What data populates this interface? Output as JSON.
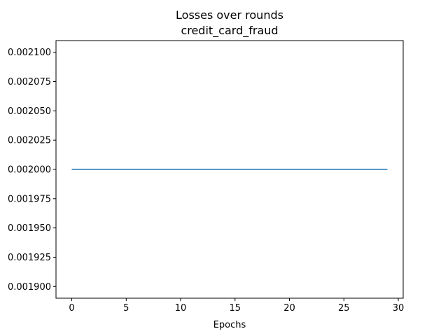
{
  "chart_data": {
    "type": "line",
    "title": "Losses over rounds",
    "subtitle": "credit_card_fraud",
    "xlabel": "Epochs",
    "ylabel": "",
    "xlim": [
      -1.45,
      30.45
    ],
    "ylim": [
      0.00189,
      0.00211
    ],
    "xticks": [
      0,
      5,
      10,
      15,
      20,
      25,
      30
    ],
    "yticks": [
      0.0019,
      0.001925,
      0.00195,
      0.001975,
      0.002,
      0.002025,
      0.00205,
      0.002075,
      0.0021
    ],
    "ytick_labels": [
      "0.001900",
      "0.001925",
      "0.001950",
      "0.001975",
      "0.002000",
      "0.002025",
      "0.002050",
      "0.002075",
      "0.002100"
    ],
    "grid": false,
    "series": [
      {
        "color": "#1f77b4",
        "x": [
          0,
          1,
          2,
          3,
          4,
          5,
          6,
          7,
          8,
          9,
          10,
          11,
          12,
          13,
          14,
          15,
          16,
          17,
          18,
          19,
          20,
          21,
          22,
          23,
          24,
          25,
          26,
          27,
          28,
          29
        ],
        "values": [
          0.002,
          0.002,
          0.002,
          0.002,
          0.002,
          0.002,
          0.002,
          0.002,
          0.002,
          0.002,
          0.002,
          0.002,
          0.002,
          0.002,
          0.002,
          0.002,
          0.002,
          0.002,
          0.002,
          0.002,
          0.002,
          0.002,
          0.002,
          0.002,
          0.002,
          0.002,
          0.002,
          0.002,
          0.002,
          0.002
        ]
      }
    ]
  }
}
